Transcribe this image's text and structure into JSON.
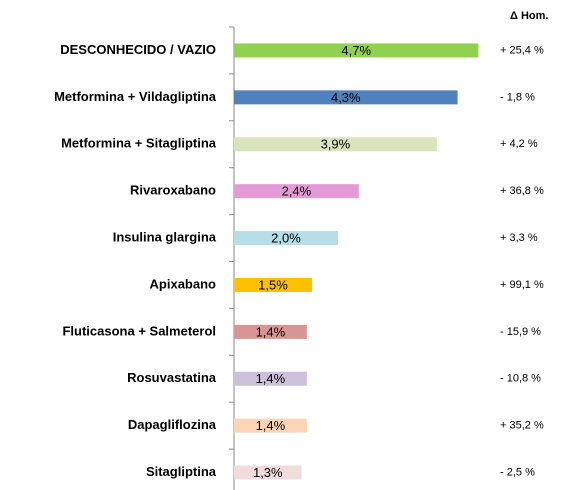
{
  "chart_data": {
    "type": "bar",
    "orientation": "horizontal",
    "categories": [
      "DESCONHECIDO / VAZIO",
      "Metformina + Vildagliptina",
      "Metformina + Sitagliptina",
      "Rivaroxabano",
      "Insulina glargina",
      "Apixabano",
      "Fluticasona + Salmeterol",
      "Rosuvastatina",
      "Dapagliflozina",
      "Sitagliptina"
    ],
    "values": [
      4.7,
      4.3,
      3.9,
      2.4,
      2.0,
      1.5,
      1.4,
      1.4,
      1.4,
      1.3
    ],
    "value_labels": [
      "4,7%",
      "4,3%",
      "3,9%",
      "2,4%",
      "2,0%",
      "1,5%",
      "1,4%",
      "1,4%",
      "1,4%",
      "1,3%"
    ],
    "colors": [
      "#92d050",
      "#4f81bd",
      "#d7e4bc",
      "#e39bd6",
      "#b7dde8",
      "#ffc000",
      "#d99594",
      "#ccc0da",
      "#fbd5b5",
      "#f2dcdb"
    ],
    "change_header": "Δ Hom.",
    "change_labels": [
      "+ 25,4 %",
      "- 1,8 %",
      "+ 4,2 %",
      "+ 36,8 %",
      "+ 3,3 %",
      "+ 99,1 %",
      "- 15,9 %",
      "- 10,8 %",
      "+ 35,2 %",
      "- 2,5 %"
    ]
  }
}
